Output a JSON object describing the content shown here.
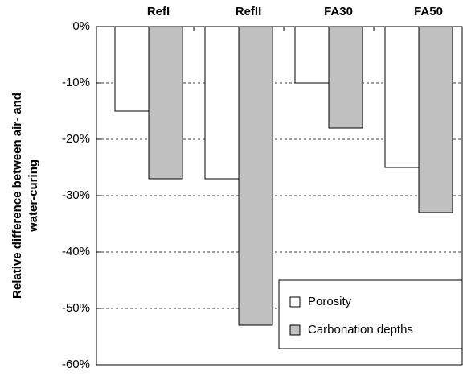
{
  "chart_data": {
    "type": "bar",
    "categories": [
      "RefI",
      "RefII",
      "FA30",
      "FA50"
    ],
    "series": [
      {
        "name": "Porosity",
        "color": "#ffffff",
        "values": [
          -15,
          -27,
          -10,
          -25
        ]
      },
      {
        "name": "Carbonation depths",
        "color": "#c0c0c0",
        "values": [
          -27,
          -53,
          -18,
          -33
        ]
      }
    ],
    "ylabel": [
      "Relative difference between air- and",
      "water-curing"
    ],
    "ylim": [
      -60,
      0
    ],
    "yticks": [
      {
        "value": 0,
        "label": "0%"
      },
      {
        "value": -10,
        "label": "-10%"
      },
      {
        "value": -20,
        "label": "-20%"
      },
      {
        "value": -30,
        "label": "-30%"
      },
      {
        "value": -40,
        "label": "-40%"
      },
      {
        "value": -50,
        "label": "-50%"
      },
      {
        "value": -60,
        "label": "-60%"
      }
    ],
    "grid": true,
    "legend": "lower right"
  }
}
